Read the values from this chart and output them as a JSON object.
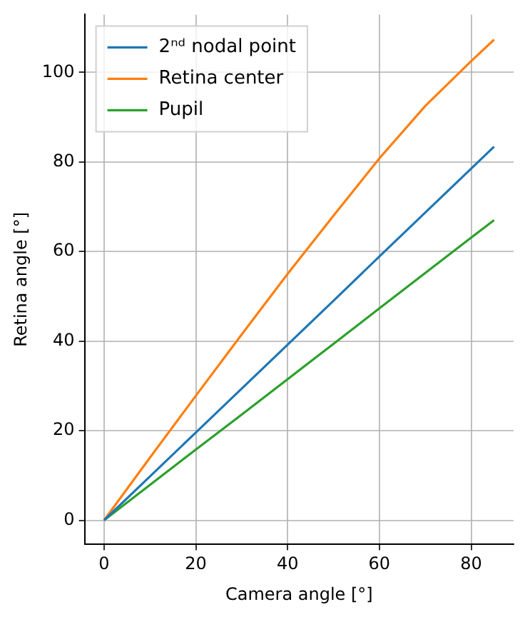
{
  "chart_data": {
    "type": "line",
    "xlabel": "Camera angle [°]",
    "ylabel": "Retina angle [°]",
    "x": [
      0,
      10,
      20,
      30,
      40,
      50,
      60,
      70,
      80,
      85
    ],
    "series": [
      {
        "name": "2ⁿᵈ nodal point",
        "color": "#1f77b4",
        "values": [
          0,
          9.8,
          19.6,
          29.4,
          39.2,
          49.0,
          58.9,
          68.7,
          78.5,
          83.4
        ]
      },
      {
        "name": "Retina center",
        "color": "#ff7f0e",
        "values": [
          0,
          14,
          27.8,
          41.5,
          55,
          68,
          80.8,
          92.5,
          102.5,
          107.3
        ]
      },
      {
        "name": "Pupil",
        "color": "#2ca02c",
        "values": [
          0,
          7.9,
          15.8,
          23.6,
          31.5,
          39.4,
          47.3,
          55.2,
          63.1,
          67
        ]
      }
    ],
    "xlim": [
      -4.25,
      89.25
    ],
    "xticks": [
      0,
      20,
      40,
      60,
      80
    ],
    "ylim": [
      -5.4,
      112.9
    ],
    "yticks": [
      0,
      20,
      40,
      60,
      80,
      100
    ],
    "grid": true,
    "legend": "top left",
    "marker": "none",
    "line_style": "solid"
  }
}
